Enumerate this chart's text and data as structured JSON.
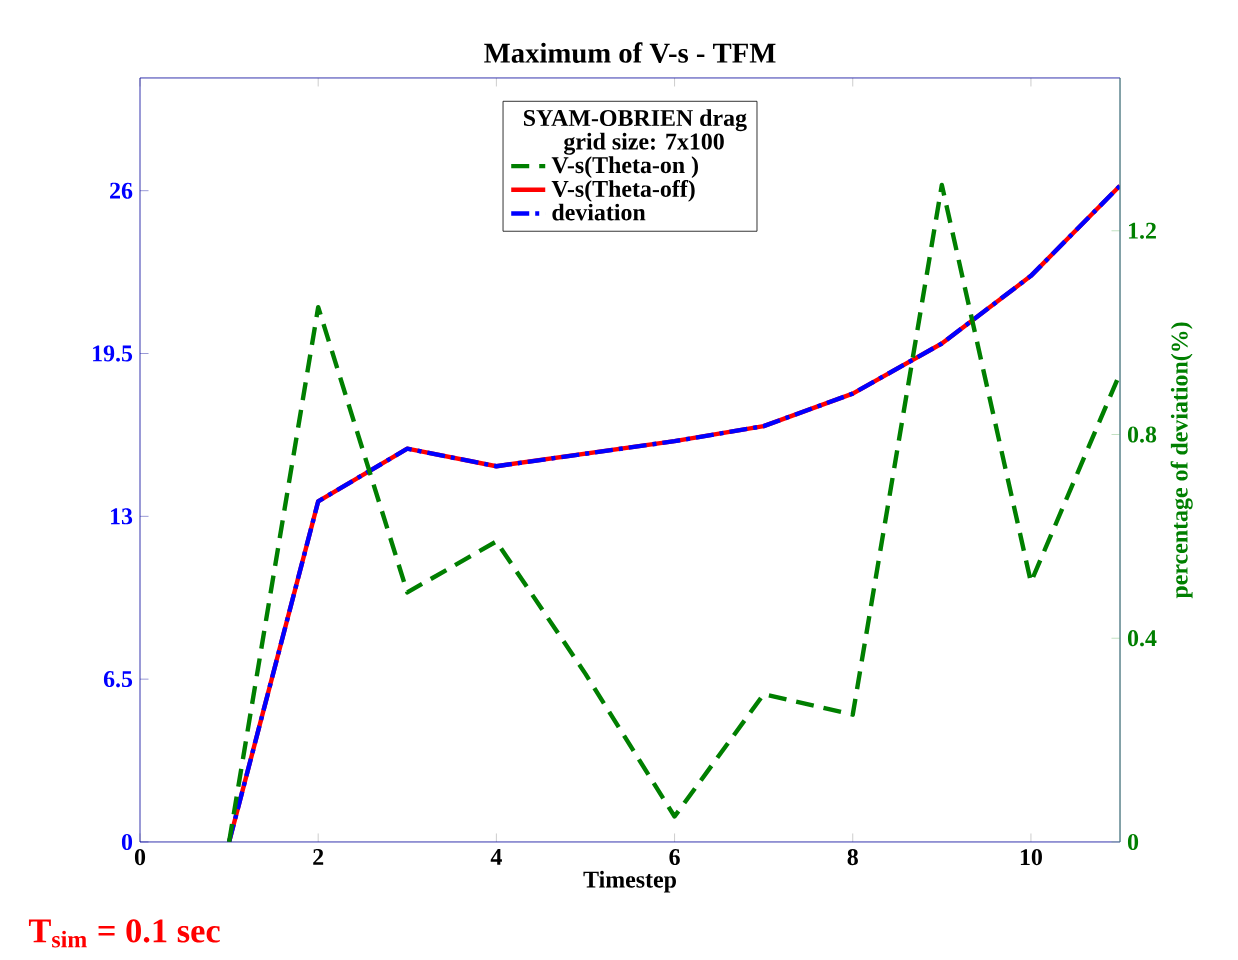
{
  "chart_data": {
    "type": "line",
    "title": "Maximum of V-s - TFM",
    "xlabel": "Timestep",
    "y2label": "percentage of deviation(%)",
    "legend_title": "SYAM-OBRIEN drag",
    "annotations": [
      "grid size: 7x100",
      "T$_{sim}$ = 0.1 sec"
    ],
    "x": [
      1,
      2,
      3,
      4,
      5,
      6,
      7,
      8,
      9,
      10,
      11
    ],
    "series": [
      {
        "name": "V-s(Theta-on )",
        "color": "#007f00",
        "line_style": "dashed",
        "axis": "y2",
        "values": [
          0,
          1.05,
          0.49,
          0.59,
          0.33,
          0.05,
          0.29,
          0.25,
          1.29,
          0.51,
          0.92
        ]
      },
      {
        "name": "V-s(Theta-off)",
        "color": "#ff0000",
        "line_style": "solid",
        "values": [
          0,
          13.6,
          15.7,
          15.0,
          15.5,
          16.0,
          16.6,
          17.9,
          19.9,
          22.6,
          26.2
        ]
      },
      {
        "name": "deviation",
        "color": "#0000ff",
        "line_style": "dashdot",
        "values": [
          0,
          13.6,
          15.7,
          15.0,
          15.5,
          16.0,
          16.6,
          17.9,
          19.9,
          22.6,
          26.2
        ]
      }
    ],
    "xlim": [
      0,
      11
    ],
    "xticks": [
      0,
      2,
      4,
      6,
      8,
      10
    ],
    "ylim": [
      0,
      30.5
    ],
    "yticks": [
      0,
      6.5,
      13,
      19.5,
      26
    ],
    "y2lim": [
      0,
      1.5
    ],
    "y2ticks": [
      0,
      0.4,
      0.8,
      1.2
    ],
    "legend": "top",
    "grid": false
  }
}
